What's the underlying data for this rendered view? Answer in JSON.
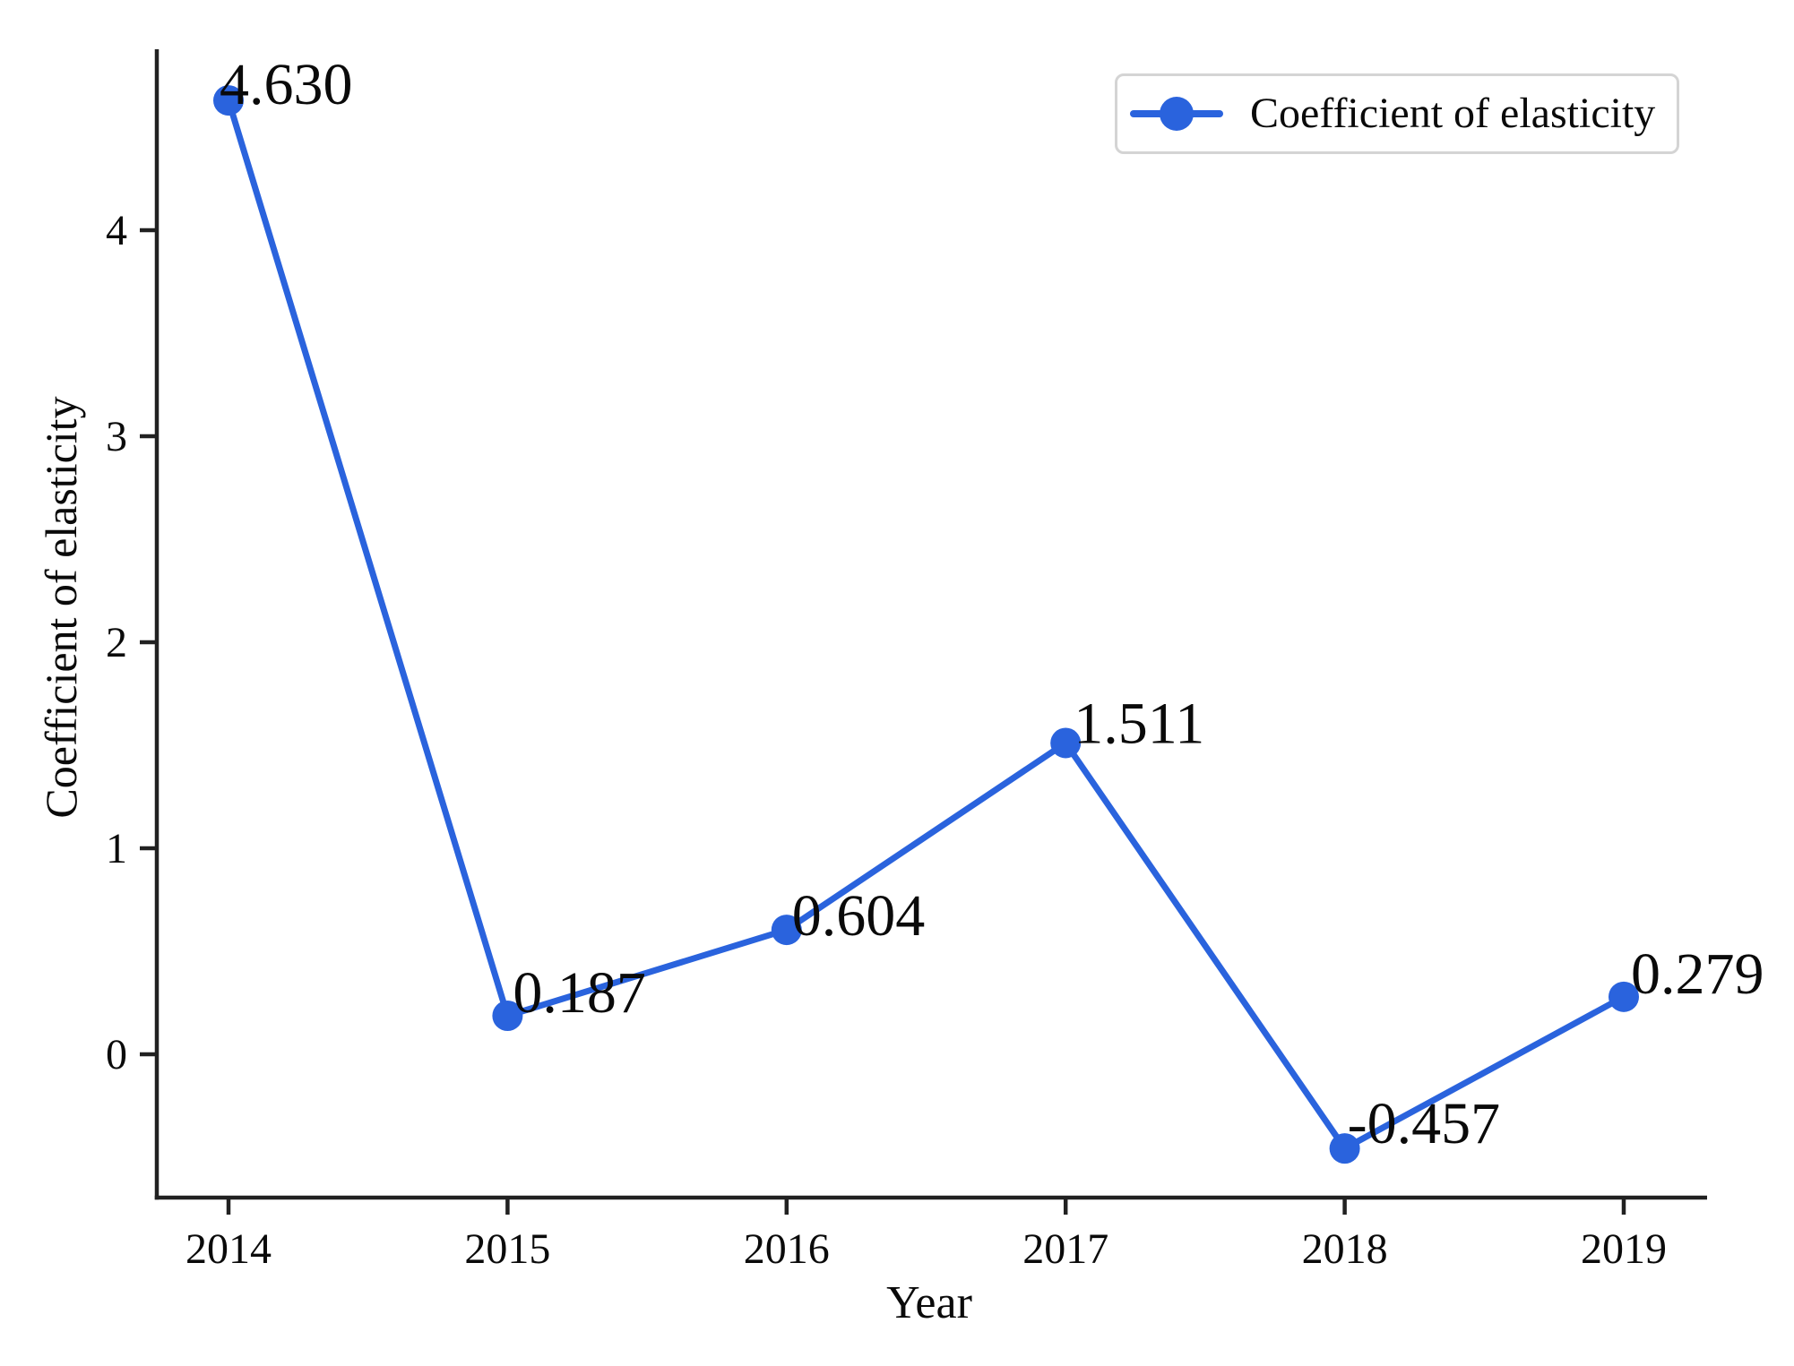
{
  "figure": {
    "background": "#ffffff"
  },
  "chart_data": {
    "type": "line",
    "title": "",
    "xlabel": "Year",
    "ylabel": "Coefficient of elasticity",
    "x": [
      2014,
      2015,
      2016,
      2017,
      2018,
      2019
    ],
    "x_tick_labels": [
      "2014",
      "2015",
      "2016",
      "2017",
      "2018",
      "2019"
    ],
    "y_ticks": [
      0,
      1,
      2,
      3,
      4
    ],
    "ylim": [
      -0.7,
      4.88
    ],
    "grid": false,
    "legend": {
      "position": "top-right",
      "entries": [
        {
          "label": "Coefficient of elasticity",
          "marker": "circle-line",
          "color": "#2a63dd"
        }
      ]
    },
    "series": [
      {
        "name": "Coefficient of elasticity",
        "color": "#2a63dd",
        "marker": "circle",
        "values": [
          4.63,
          0.187,
          0.604,
          1.511,
          -0.457,
          0.279
        ],
        "point_labels": [
          "4.630",
          "0.187",
          "0.604",
          "1.511",
          "-0.457",
          "0.279"
        ]
      }
    ],
    "colors": {
      "line": "#2a63dd",
      "axis": "#212121",
      "text": "#0a0a0a",
      "legend_border": "#d4d4d4"
    }
  }
}
